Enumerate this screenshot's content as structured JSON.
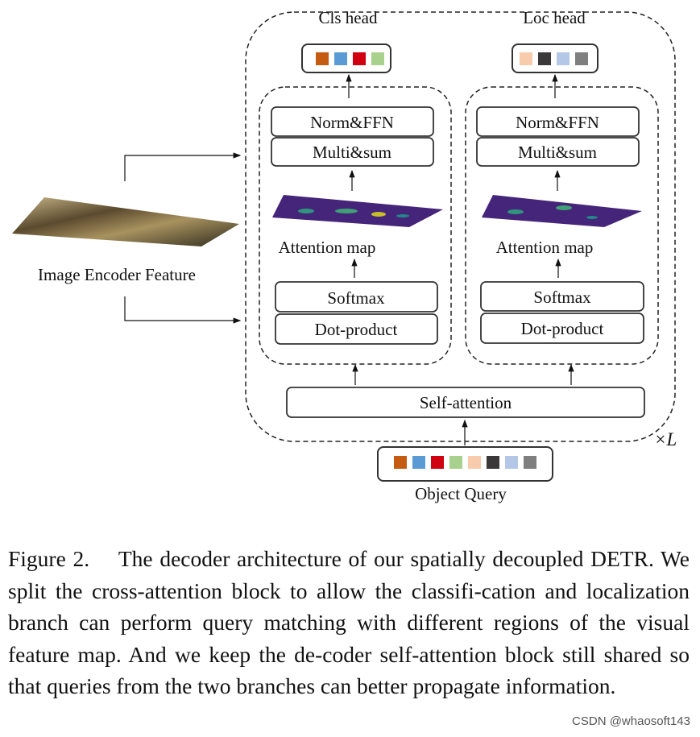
{
  "heads": {
    "cls": "Cls head",
    "loc": "Loc head"
  },
  "branches": {
    "norm_ffn": "Norm&FFN",
    "multi_sum": "Multi&sum",
    "attention_map": "Attention map",
    "softmax": "Softmax",
    "dot_product": "Dot-product"
  },
  "self_attention": "Self-attention",
  "object_query": "Object Query",
  "image_encoder": "Image Encoder Feature",
  "repeat_label": "×L",
  "colors": {
    "cls_tokens": [
      "#c55a11",
      "#5b9bd5",
      "#d00010",
      "#a9d18e"
    ],
    "loc_tokens": [
      "#f8cbad",
      "#3a3838",
      "#b4c7e7",
      "#7f7f7f"
    ],
    "attention_map_bg": "#4b2a7a"
  },
  "caption": "Figure 2.  The decoder architecture of our spatially decoupled DETR. We split the cross-attention block to allow the classifi-cation and localization branch can perform query matching with different regions of the visual feature map. And we keep the de-coder self-attention block still shared so that queries from the two branches can better propagate information.",
  "watermark": "CSDN @whaosoft143"
}
